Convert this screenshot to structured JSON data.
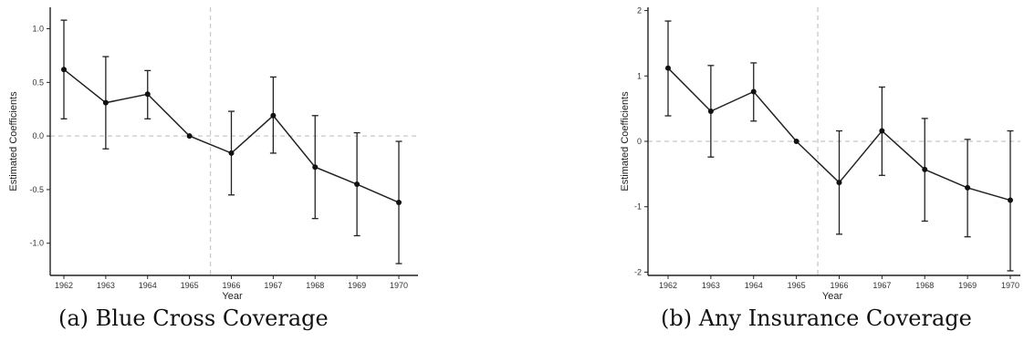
{
  "chart_data": [
    {
      "type": "line",
      "caption": "(a) Blue Cross Coverage",
      "xlabel": "Year",
      "ylabel": "Estimated Coefficients",
      "categories": [
        "1962",
        "1963",
        "1964",
        "1965",
        "1966",
        "1967",
        "1968",
        "1969",
        "1970"
      ],
      "y_ticks": [
        -1.0,
        -0.5,
        0.0,
        0.5,
        1.0
      ],
      "y_tick_labels": [
        "-1.0",
        "-0.5",
        "0.0",
        "0.5",
        "1.0"
      ],
      "ylim": [
        -1.3,
        1.2
      ],
      "reference_x": "between 1965 and 1966",
      "reference_y": 0,
      "series": [
        {
          "values": [
            0.62,
            0.31,
            0.39,
            0.0,
            -0.16,
            0.19,
            -0.29,
            -0.45,
            -0.62
          ],
          "ci_low": [
            0.16,
            -0.12,
            0.16,
            0.0,
            -0.55,
            -0.16,
            -0.77,
            -0.93,
            -1.19
          ],
          "ci_high": [
            1.08,
            0.74,
            0.61,
            0.0,
            0.23,
            0.55,
            0.19,
            0.03,
            -0.05
          ]
        }
      ],
      "grid": false
    },
    {
      "type": "line",
      "caption": "(b) Any Insurance Coverage",
      "xlabel": "Year",
      "ylabel": "Estimated Coefficients",
      "categories": [
        "1962",
        "1963",
        "1964",
        "1965",
        "1966",
        "1967",
        "1968",
        "1969",
        "1970"
      ],
      "y_ticks": [
        -2,
        -1,
        0,
        1,
        2
      ],
      "y_tick_labels": [
        "-2",
        "-1",
        "0",
        "1",
        "2"
      ],
      "ylim": [
        -2.05,
        2.05
      ],
      "reference_x": "between 1965 and 1966",
      "reference_y": 0,
      "series": [
        {
          "values": [
            1.12,
            0.46,
            0.76,
            0.0,
            -0.63,
            0.16,
            -0.43,
            -0.71,
            -0.9
          ],
          "ci_low": [
            0.39,
            -0.24,
            0.31,
            0.0,
            -1.42,
            -0.52,
            -1.22,
            -1.46,
            -1.98
          ],
          "ci_high": [
            1.84,
            1.16,
            1.2,
            0.0,
            0.16,
            0.83,
            0.35,
            0.03,
            0.16
          ]
        }
      ],
      "grid": false
    }
  ]
}
